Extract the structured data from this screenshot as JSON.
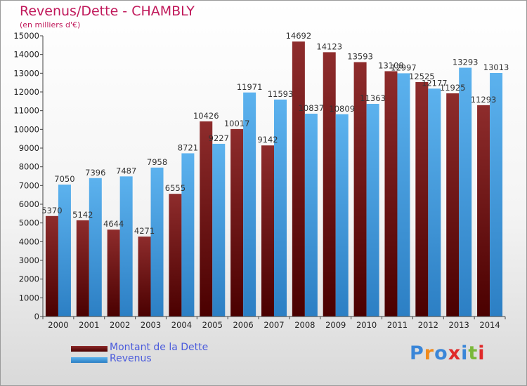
{
  "header": {
    "title": "Revenus/Dette - CHAMBLY",
    "subtitle": "(en milliers d'€)"
  },
  "legend": [
    {
      "label": "Montant de la Dette",
      "color": "#7a1a1a"
    },
    {
      "label": "Revenus",
      "color": "#3d9be3"
    }
  ],
  "logo": {
    "text": "Proxiti",
    "letters": [
      {
        "ch": "P",
        "color": "#3a86d8"
      },
      {
        "ch": "r",
        "color": "#f08a1c"
      },
      {
        "ch": "o",
        "color": "#3a86d8"
      },
      {
        "ch": "x",
        "color": "#e02a2a"
      },
      {
        "ch": "i",
        "color": "#3a86d8"
      },
      {
        "ch": "t",
        "color": "#7ab83a"
      },
      {
        "ch": "i",
        "color": "#e02a2a"
      }
    ]
  },
  "chart_data": {
    "type": "bar",
    "title": "Revenus/Dette - CHAMBLY",
    "subtitle": "(en milliers d'€)",
    "categories": [
      "2000",
      "2001",
      "2002",
      "2003",
      "2004",
      "2005",
      "2006",
      "2007",
      "2008",
      "2009",
      "2010",
      "2011",
      "2012",
      "2013",
      "2014"
    ],
    "series": [
      {
        "name": "Montant de la Dette",
        "color": "#7a1a1a",
        "values": [
          5370,
          5142,
          4644,
          4271,
          6555,
          10426,
          10017,
          9142,
          14692,
          14123,
          13593,
          13108,
          12525,
          11925,
          11293
        ],
        "labels": [
          "5370",
          "5142",
          "4644",
          "4271",
          "6555",
          "10426",
          "10017",
          "9142",
          "14692",
          "14123",
          "13593",
          "13108",
          "12525",
          "11925",
          "11293"
        ]
      },
      {
        "name": "Revenus",
        "color": "#3d9be3",
        "values": [
          7050,
          7396,
          7487,
          7958,
          8721,
          9227,
          11971,
          11593,
          10837,
          10809,
          11363,
          12997,
          12177,
          13293,
          13013
        ],
        "labels": [
          "7050",
          "7396",
          "7487",
          "7958",
          "8721",
          "9227",
          "11971",
          "11593",
          "10837",
          "10809",
          "11363",
          "12997",
          "12177",
          "13293",
          "13013"
        ]
      }
    ],
    "yticks": [
      "0",
      "1000",
      "2000",
      "3000",
      "4000",
      "5000",
      "6000",
      "7000",
      "8000",
      "9000",
      "10000",
      "11000",
      "12000",
      "13000",
      "14000",
      "15000"
    ],
    "ylim": [
      0,
      15000
    ],
    "grid": false,
    "legend_position": "bottom-left"
  }
}
